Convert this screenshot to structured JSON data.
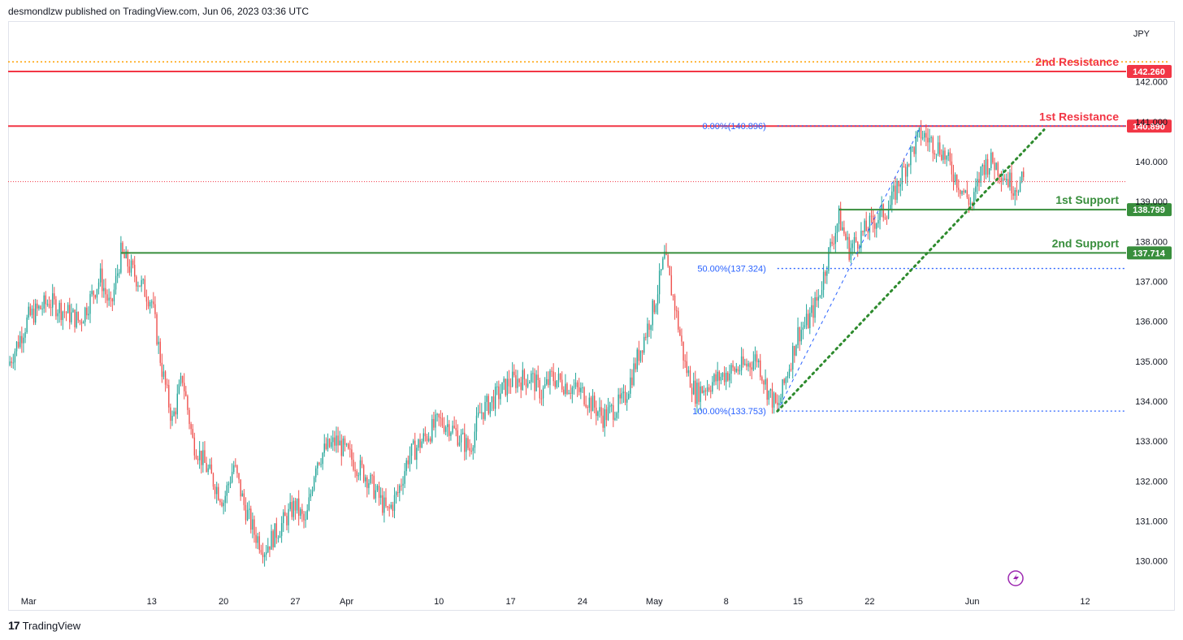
{
  "header": {
    "publisher_line": "desmondlzw published on TradingView.com, Jun 06, 2023 03:36 UTC"
  },
  "footer": {
    "logo_mark": "17",
    "logo_text": "TradingView"
  },
  "colors": {
    "up": "#26a69a",
    "down": "#ef5350",
    "resistance": "#f23645",
    "support": "#388e3c",
    "fib": "#2962ff",
    "trend": "#2e8b2e",
    "top_dotted": "#ffa000",
    "current_price": "#f23645"
  },
  "chart_data": {
    "type": "candlestick",
    "currency": "JPY",
    "ylim": [
      129.3,
      143.5
    ],
    "y_ticks": [
      130.0,
      131.0,
      132.0,
      133.0,
      134.0,
      135.0,
      136.0,
      137.0,
      138.0,
      139.0,
      140.0,
      141.0,
      142.0
    ],
    "x_range": [
      "2023-02-27",
      "2023-06-16"
    ],
    "x_ticks": [
      {
        "date": "2023-03-01",
        "label": "Mar"
      },
      {
        "date": "2023-03-13",
        "label": "13"
      },
      {
        "date": "2023-03-20",
        "label": "20"
      },
      {
        "date": "2023-03-27",
        "label": "27"
      },
      {
        "date": "2023-04-01",
        "label": "Apr"
      },
      {
        "date": "2023-04-10",
        "label": "10"
      },
      {
        "date": "2023-04-17",
        "label": "17"
      },
      {
        "date": "2023-04-24",
        "label": "24"
      },
      {
        "date": "2023-05-01",
        "label": "May"
      },
      {
        "date": "2023-05-08",
        "label": "8"
      },
      {
        "date": "2023-05-15",
        "label": "15"
      },
      {
        "date": "2023-05-22",
        "label": "22"
      },
      {
        "date": "2023-06-01",
        "label": "Jun"
      },
      {
        "date": "2023-06-12",
        "label": "12"
      }
    ],
    "close_path": [
      [
        "2023-02-27",
        134.9
      ],
      [
        "2023-03-01",
        136.1
      ],
      [
        "2023-03-03",
        136.5
      ],
      [
        "2023-03-06",
        136.0
      ],
      [
        "2023-03-08",
        137.1
      ],
      [
        "2023-03-09",
        136.3
      ],
      [
        "2023-03-10",
        137.7
      ],
      [
        "2023-03-13",
        136.5
      ],
      [
        "2023-03-14",
        134.8
      ],
      [
        "2023-03-15",
        133.5
      ],
      [
        "2023-03-16",
        134.6
      ],
      [
        "2023-03-17",
        133.0
      ],
      [
        "2023-03-20",
        131.5
      ],
      [
        "2023-03-21",
        132.4
      ],
      [
        "2023-03-22",
        131.4
      ],
      [
        "2023-03-23",
        130.7
      ],
      [
        "2023-03-24",
        130.3
      ],
      [
        "2023-03-27",
        131.4
      ],
      [
        "2023-03-28",
        130.9
      ],
      [
        "2023-03-29",
        132.5
      ],
      [
        "2023-03-30",
        132.8
      ],
      [
        "2023-03-31",
        133.0
      ],
      [
        "2023-04-03",
        132.1
      ],
      [
        "2023-04-05",
        131.2
      ],
      [
        "2023-04-06",
        131.7
      ],
      [
        "2023-04-07",
        132.6
      ],
      [
        "2023-04-10",
        133.5
      ],
      [
        "2023-04-11",
        133.4
      ],
      [
        "2023-04-13",
        132.8
      ],
      [
        "2023-04-14",
        133.7
      ],
      [
        "2023-04-17",
        134.5
      ],
      [
        "2023-04-19",
        134.6
      ],
      [
        "2023-04-20",
        134.2
      ],
      [
        "2023-04-21",
        134.6
      ],
      [
        "2023-04-24",
        134.2
      ],
      [
        "2023-04-26",
        133.6
      ],
      [
        "2023-04-28",
        134.0
      ],
      [
        "2023-05-01",
        136.4
      ],
      [
        "2023-05-02",
        137.6
      ],
      [
        "2023-05-03",
        136.4
      ],
      [
        "2023-05-04",
        134.9
      ],
      [
        "2023-05-05",
        134.2
      ],
      [
        "2023-05-08",
        134.7
      ],
      [
        "2023-05-10",
        134.9
      ],
      [
        "2023-05-11",
        135.1
      ],
      [
        "2023-05-12",
        134.3
      ],
      [
        "2023-05-13",
        133.8
      ],
      [
        "2023-05-15",
        135.7
      ],
      [
        "2023-05-16",
        136.0
      ],
      [
        "2023-05-17",
        136.6
      ],
      [
        "2023-05-18",
        137.7
      ],
      [
        "2023-05-19",
        138.6
      ],
      [
        "2023-05-20",
        137.8
      ],
      [
        "2023-05-22",
        138.4
      ],
      [
        "2023-05-24",
        138.9
      ],
      [
        "2023-05-25",
        139.6
      ],
      [
        "2023-05-26",
        140.2
      ],
      [
        "2023-05-27",
        140.7
      ],
      [
        "2023-05-29",
        140.3
      ],
      [
        "2023-05-30",
        139.8
      ],
      [
        "2023-05-31",
        139.3
      ],
      [
        "2023-06-01",
        138.9
      ],
      [
        "2023-06-02",
        139.9
      ],
      [
        "2023-06-03",
        140.0
      ],
      [
        "2023-06-05",
        139.4
      ],
      [
        "2023-06-06",
        139.5
      ]
    ],
    "levels": [
      {
        "name": "2nd Resistance",
        "value": 142.26,
        "tag": "142.260",
        "kind": "resistance"
      },
      {
        "name": "1st Resistance",
        "value": 140.89,
        "tag": "140.890",
        "kind": "resistance"
      },
      {
        "name": "1st Support",
        "value": 138.799,
        "tag": "138.799",
        "kind": "support"
      },
      {
        "name": "2nd Support",
        "value": 137.714,
        "tag": "137.714",
        "kind": "support"
      }
    ],
    "fib": [
      {
        "label": "0.00%(140.896)",
        "value": 140.896
      },
      {
        "label": "50.00%(137.324)",
        "value": 137.324
      },
      {
        "label": "100.00%(133.753)",
        "value": 133.753
      }
    ],
    "current_price": 139.5,
    "top_dotted_value": 142.5,
    "trendline": [
      [
        "2023-05-13",
        133.75
      ],
      [
        "2023-06-08",
        140.8
      ]
    ]
  }
}
